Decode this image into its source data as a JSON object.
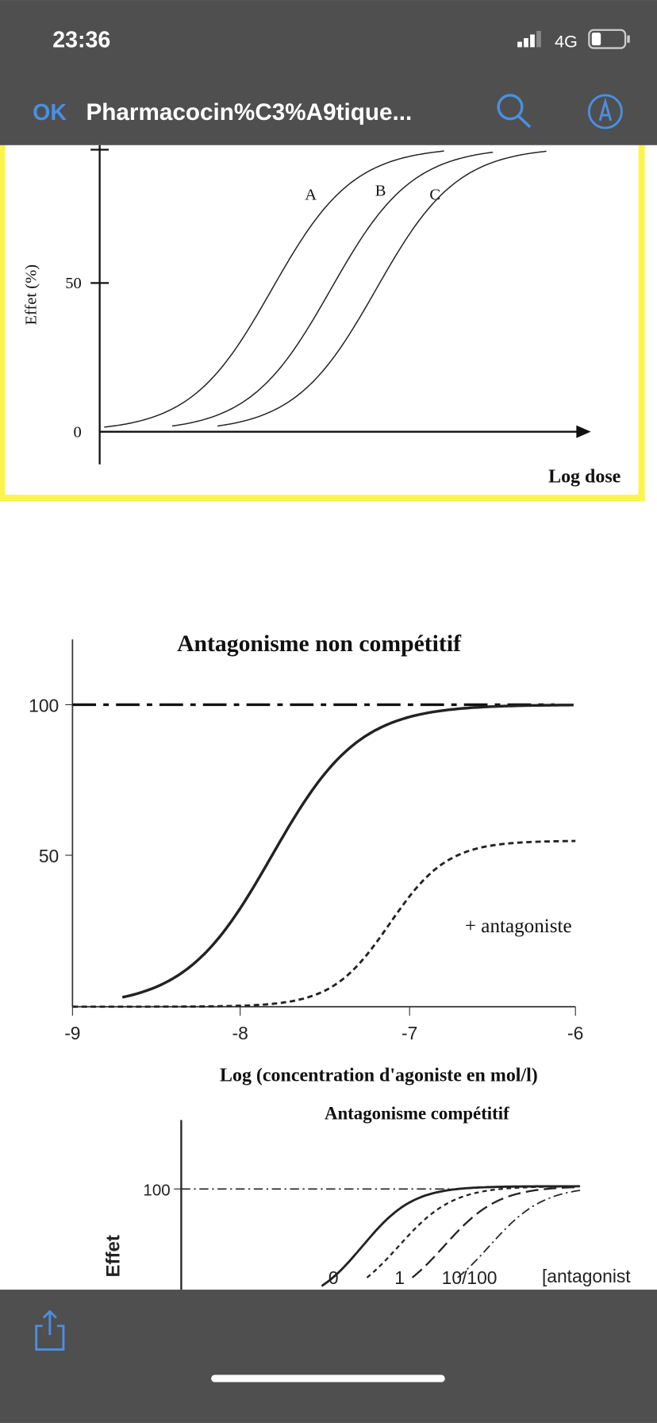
{
  "status_bar": {
    "time": "23:36",
    "network": "4G"
  },
  "nav_bar": {
    "done": "OK",
    "title": "Pharmacocin%C3%A9tique..."
  },
  "figures": [
    {
      "y_axis_label": "Effet (%)",
      "y_ticks": [
        "0",
        "50"
      ],
      "x_axis_label": "Log dose",
      "curve_labels": [
        "A",
        "B",
        "C"
      ]
    },
    {
      "title": "Antagonisme non compétitif",
      "y_ticks": [
        "100",
        "50"
      ],
      "x_ticks": [
        "-9",
        "-8",
        "-7",
        "-6"
      ],
      "x_axis_label": "Log (concentration d'agoniste en mol/l)",
      "curve_labels": [
        "+ antagoniste"
      ]
    },
    {
      "title": "Antagonisme compétitif",
      "y_ticks": [
        "100"
      ],
      "y_axis_label": "Effet",
      "curve_labels": [
        "0",
        "1",
        "10/100",
        "[antagonist"
      ]
    }
  ]
}
